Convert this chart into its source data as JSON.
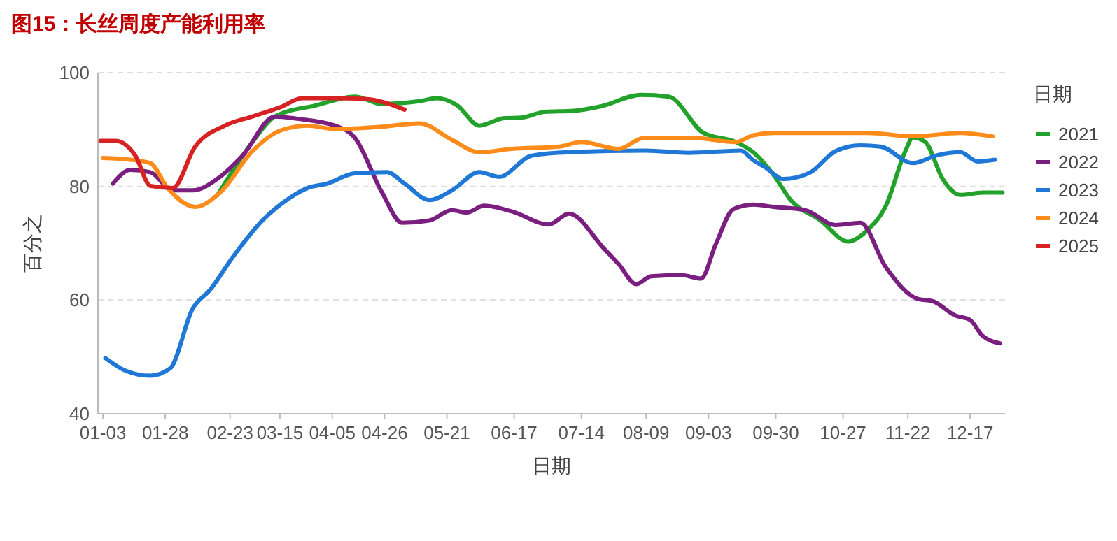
{
  "chart_data": {
    "type": "line",
    "title": "图15：长丝周度产能利用率",
    "xlabel": "日期",
    "ylabel": "百分之",
    "legend_title": "日期",
    "legend": "right",
    "grid": "y",
    "xlim": [
      "--01-01",
      "--12-31"
    ],
    "ylim": [
      40,
      100
    ],
    "yticks": [
      40,
      60,
      80,
      100
    ],
    "xticks": [
      {
        "value": "--01-03",
        "label": "01-03"
      },
      {
        "value": "--01-28",
        "label": "01-28"
      },
      {
        "value": "--02-23",
        "label": "02-23"
      },
      {
        "value": "--03-15",
        "label": "03-15"
      },
      {
        "value": "--04-05",
        "label": "04-05"
      },
      {
        "value": "--04-26",
        "label": "04-26"
      },
      {
        "value": "--05-21",
        "label": "05-21"
      },
      {
        "value": "--06-17",
        "label": "06-17"
      },
      {
        "value": "--07-14",
        "label": "07-14"
      },
      {
        "value": "--08-09",
        "label": "08-09"
      },
      {
        "value": "--09-03",
        "label": "09-03"
      },
      {
        "value": "--09-30",
        "label": "09-30"
      },
      {
        "value": "--10-27",
        "label": "10-27"
      },
      {
        "value": "--11-22",
        "label": "11-22"
      },
      {
        "value": "--12-17",
        "label": "12-17"
      }
    ],
    "series": [
      {
        "name": "2021",
        "color": "#22a22a",
        "x": [
          "--02-18",
          "--03-04",
          "--03-13",
          "--03-30",
          "--04-14",
          "--04-25",
          "--05-10",
          "--05-17",
          "--05-25",
          "--06-03",
          "--06-13",
          "--06-20",
          "--06-29",
          "--07-11",
          "--07-22",
          "--08-07",
          "--08-18",
          "--09-01",
          "--09-14",
          "--09-21",
          "--09-29",
          "--10-06",
          "--10-18",
          "--10-29",
          "--11-06",
          "--11-13",
          "--11-21",
          "--11-24",
          "--11-29",
          "--12-06",
          "--12-13",
          "--12-22",
          "--12-30"
        ],
        "values": [
          78.5,
          87.8,
          92.3,
          94.3,
          95.8,
          94.5,
          95,
          95.5,
          94.3,
          90.7,
          92,
          92.1,
          93.1,
          93.3,
          94.1,
          96.1,
          95.8,
          89.4,
          87.8,
          86,
          82.1,
          77.6,
          74,
          70.3,
          72.4,
          76.4,
          86.2,
          88.6,
          87.8,
          81.3,
          78.5,
          78.9,
          78.9
        ]
      },
      {
        "name": "2022",
        "color": "#7a1f80",
        "x": [
          "--01-07",
          "--01-14",
          "--01-22",
          "--01-31",
          "--02-08",
          "--02-19",
          "--02-28",
          "--03-13",
          "--03-22",
          "--04-06",
          "--04-14",
          "--04-25",
          "--05-03",
          "--05-14",
          "--05-23",
          "--05-29",
          "--06-05",
          "--06-16",
          "--07-01",
          "--07-09",
          "--07-23",
          "--07-29",
          "--08-05",
          "--08-11",
          "--08-23",
          "--08-31",
          "--09-06",
          "--09-13",
          "--09-21",
          "--09-29",
          "--10-12",
          "--10-24",
          "--11-03",
          "--11-13",
          "--11-26",
          "--12-02",
          "--12-11",
          "--12-17",
          "--12-22",
          "--12-29"
        ],
        "values": [
          80.5,
          82.9,
          82.5,
          79.3,
          79.3,
          81.7,
          85.4,
          92.3,
          91.9,
          90.7,
          88.6,
          78.9,
          73.6,
          74,
          75.8,
          75.4,
          76.6,
          75.6,
          73.3,
          75.2,
          69.1,
          66.3,
          62.8,
          64.2,
          64.4,
          63.8,
          69.9,
          76,
          76.8,
          76.4,
          75.8,
          73.2,
          73.6,
          65.9,
          60.2,
          59.8,
          57.3,
          56.5,
          53.7,
          52.4
        ]
      },
      {
        "name": "2023",
        "color": "#1f78d6",
        "x": [
          "--01-04",
          "--01-12",
          "--01-22",
          "--01-30",
          "--02-08",
          "--02-15",
          "--02-24",
          "--03-08",
          "--03-19",
          "--03-26",
          "--04-03",
          "--04-14",
          "--04-27",
          "--05-04",
          "--05-14",
          "--05-23",
          "--06-03",
          "--06-11",
          "--06-24",
          "--07-09",
          "--08-09",
          "--08-26",
          "--09-16",
          "--09-21",
          "--09-26",
          "--10-03",
          "--10-14",
          "--10-24",
          "--11-03",
          "--11-11",
          "--11-24",
          "--12-04",
          "--12-13",
          "--12-20",
          "--12-27"
        ],
        "values": [
          49.8,
          47.6,
          46.7,
          48,
          58.5,
          61.8,
          67.5,
          74,
          78,
          79.7,
          80.5,
          82.3,
          82.5,
          80.5,
          77.6,
          79.3,
          82.5,
          81.7,
          85.4,
          86,
          86.3,
          85.9,
          86.3,
          84.6,
          83.3,
          81.3,
          82.5,
          86.2,
          87.2,
          87,
          84.1,
          85.5,
          86,
          84.4,
          84.7
        ]
      },
      {
        "name": "2024",
        "color": "#ff8c1a",
        "x": [
          "--01-03",
          "--01-14",
          "--01-22",
          "--01-29",
          "--02-09",
          "--02-19",
          "--03-04",
          "--03-15",
          "--03-26",
          "--04-06",
          "--04-25",
          "--05-10",
          "--05-23",
          "--06-03",
          "--06-16",
          "--07-05",
          "--07-14",
          "--07-29",
          "--08-08",
          "--08-28",
          "--09-14",
          "--09-21",
          "--09-29",
          "--11-06",
          "--11-24",
          "--12-13",
          "--12-26"
        ],
        "values": [
          85,
          84.7,
          84.1,
          79.7,
          76.4,
          78.9,
          86.2,
          89.8,
          90.7,
          90.1,
          90.5,
          91.1,
          88.2,
          86,
          86.6,
          87,
          87.8,
          86.6,
          88.5,
          88.5,
          87.8,
          89,
          89.4,
          89.4,
          88.8,
          89.4,
          88.8
        ]
      },
      {
        "name": "2025",
        "color": "#d62222",
        "x": [
          "--01-02",
          "--01-08",
          "--01-16",
          "--01-22",
          "--01-31",
          "--02-09",
          "--02-21",
          "--03-04",
          "--03-15",
          "--03-24",
          "--04-06",
          "--04-18",
          "--05-04"
        ],
        "values": [
          88,
          88,
          85.4,
          80.1,
          79.7,
          87,
          90.7,
          92.3,
          93.9,
          95.5,
          95.5,
          95.4,
          93.5
        ]
      }
    ]
  }
}
